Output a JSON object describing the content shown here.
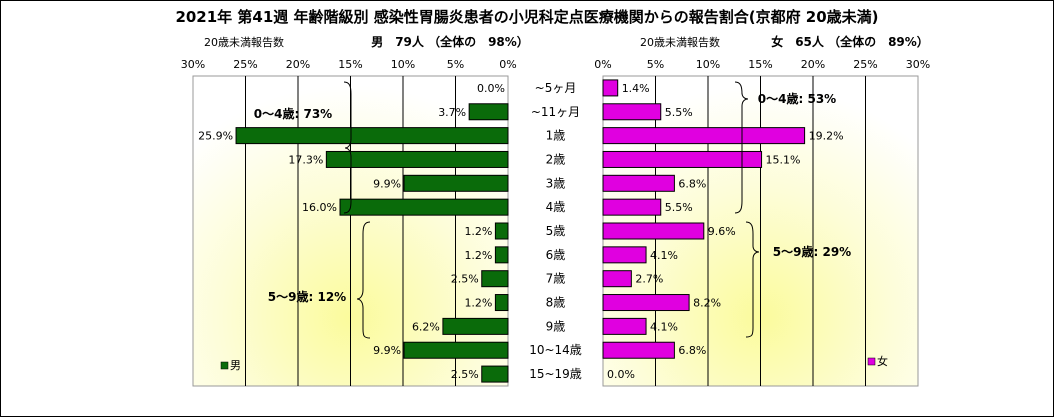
{
  "chart_data": {
    "type": "bar",
    "title": "2021年 第41週 年齢階級別 感染性胃腸炎患者の小児科定点医療機関からの報告割合(京都府 20歳未満)",
    "categories": [
      "~5ヶ月",
      "~11ヶ月",
      "1歳",
      "2歳",
      "3歳",
      "4歳",
      "5歳",
      "6歳",
      "7歳",
      "8歳",
      "9歳",
      "10~14歳",
      "15~19歳"
    ],
    "xlim": [
      0,
      30
    ],
    "tick_values": [
      30,
      25,
      20,
      15,
      10,
      5,
      0
    ],
    "tick_labels": [
      "30%",
      "25%",
      "20%",
      "15%",
      "10%",
      "5%",
      "0%"
    ],
    "series": [
      {
        "name": "男",
        "color": "#0a6b0a",
        "axis_caption": "20歳未満報告数",
        "header": "男　79人 （全体の　98%）",
        "values": [
          0.0,
          3.7,
          25.9,
          17.3,
          9.9,
          16.0,
          1.2,
          1.2,
          2.5,
          1.2,
          6.2,
          9.9,
          2.5
        ],
        "labels": [
          "0.0%",
          "3.7%",
          "25.9%",
          "17.3%",
          "9.9%",
          "16.0%",
          "1.2%",
          "1.2%",
          "2.5%",
          "1.2%",
          "6.2%",
          "9.9%",
          "2.5%"
        ],
        "group_labels": [
          "0～4歳: 73%",
          "5～9歳: 12%"
        ]
      },
      {
        "name": "女",
        "color": "#e000e0",
        "axis_caption": "20歳未満報告数",
        "header": "女　65人 （全体の　89%）",
        "values": [
          1.4,
          5.5,
          19.2,
          15.1,
          6.8,
          5.5,
          9.6,
          4.1,
          2.7,
          8.2,
          4.1,
          6.8,
          0.0
        ],
        "labels": [
          "1.4%",
          "5.5%",
          "19.2%",
          "15.1%",
          "6.8%",
          "5.5%",
          "9.6%",
          "4.1%",
          "2.7%",
          "8.2%",
          "4.1%",
          "6.8%",
          "0.0%"
        ],
        "group_labels": [
          "0～4歳: 53%",
          "5～9歳: 29%"
        ]
      }
    ]
  }
}
